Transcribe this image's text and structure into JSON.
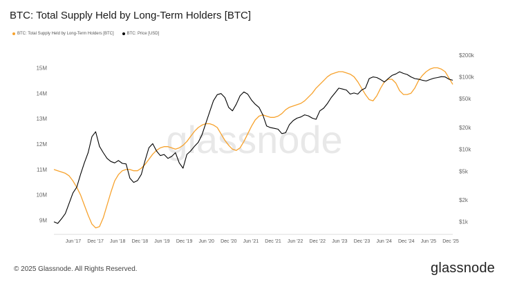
{
  "header": {
    "title": "BTC: Total Supply Held by Long-Term Holders [BTC]"
  },
  "legend": {
    "series1": "BTC: Total Supply Held by Long-Term Holders [BTC]",
    "series2": "BTC: Price [USD]"
  },
  "watermark": "glassnode",
  "footer": {
    "copyright": "© 2025 Glassnode. All Rights Reserved.",
    "brand": "glassnode"
  },
  "colors": {
    "supply": "#f7a22c",
    "price": "#000000"
  },
  "chart_data": {
    "type": "line",
    "title": "BTC: Total Supply Held by Long-Term Holders [BTC]",
    "left_axis": {
      "ticks": [
        "15M",
        "14M",
        "13M",
        "12M",
        "11M",
        "10M",
        "9M"
      ],
      "ylim": [
        8.5,
        15.5
      ],
      "unit": "M BTC"
    },
    "right_axis": {
      "scale": "log",
      "ticks": [
        "$200k",
        "$100k",
        "$50k",
        "$20k",
        "$10k",
        "$5k",
        "$2k",
        "$1k"
      ],
      "ylim": [
        700,
        200000
      ]
    },
    "x_ticks": [
      "Jun '17",
      "Dec '17",
      "Jun '18",
      "Dec '18",
      "Jun '19",
      "Dec '19",
      "Jun '20",
      "Dec '20",
      "Jun '21",
      "Dec '21",
      "Jun '22",
      "Dec '22",
      "Jun '23",
      "Dec '23",
      "Jun '24",
      "Dec '24",
      "Jun '25",
      "Dec '25"
    ],
    "series": [
      {
        "name": "BTC: Total Supply Held by Long-Term Holders [BTC]",
        "axis": "left",
        "x": [
          0,
          1,
          2,
          3,
          4,
          5,
          6,
          7,
          8,
          9,
          10,
          11,
          12,
          13,
          14,
          15,
          16,
          17,
          18,
          19,
          20,
          21,
          22,
          23,
          24,
          25,
          26,
          27,
          28,
          29,
          30,
          31,
          32,
          33,
          34,
          35,
          36,
          37,
          38,
          39,
          40,
          41,
          42,
          43,
          44,
          45,
          46,
          47,
          48,
          49,
          50,
          51,
          52,
          53,
          54,
          55,
          56,
          57,
          58,
          59,
          60,
          61,
          62,
          63,
          64,
          65,
          66,
          67,
          68,
          69,
          70,
          71,
          72,
          73,
          74,
          75,
          76,
          77,
          78,
          79,
          80,
          81,
          82,
          83,
          84,
          85,
          86,
          87,
          88,
          89,
          90,
          91,
          92,
          93,
          94,
          95,
          96,
          97,
          98,
          99,
          100,
          101,
          102,
          103,
          104,
          105
        ],
        "values": [
          11.0,
          10.95,
          10.9,
          10.85,
          10.75,
          10.55,
          10.3,
          10.0,
          9.6,
          9.2,
          8.85,
          8.7,
          8.75,
          9.1,
          9.6,
          10.1,
          10.55,
          10.8,
          10.95,
          11.0,
          11.0,
          10.95,
          10.95,
          11.05,
          11.2,
          11.4,
          11.6,
          11.75,
          11.85,
          11.9,
          11.9,
          11.85,
          11.8,
          11.85,
          11.95,
          12.1,
          12.3,
          12.5,
          12.65,
          12.75,
          12.8,
          12.8,
          12.75,
          12.65,
          12.4,
          12.15,
          11.95,
          11.8,
          11.75,
          11.85,
          12.1,
          12.4,
          12.7,
          12.95,
          13.1,
          13.15,
          13.1,
          13.05,
          13.05,
          13.1,
          13.2,
          13.35,
          13.45,
          13.5,
          13.55,
          13.6,
          13.7,
          13.85,
          14.0,
          14.2,
          14.35,
          14.5,
          14.65,
          14.75,
          14.8,
          14.85,
          14.85,
          14.8,
          14.75,
          14.65,
          14.45,
          14.2,
          13.95,
          13.75,
          13.7,
          13.9,
          14.2,
          14.45,
          14.55,
          14.55,
          14.4,
          14.1,
          13.95,
          13.95,
          14.0,
          14.2,
          14.5,
          14.7,
          14.85,
          14.95,
          15.0,
          15.0,
          14.95,
          14.85,
          14.6,
          14.35
        ]
      },
      {
        "name": "BTC: Price [USD]",
        "axis": "right",
        "x": [
          0,
          1,
          2,
          3,
          4,
          5,
          6,
          7,
          8,
          9,
          10,
          11,
          12,
          13,
          14,
          15,
          16,
          17,
          18,
          19,
          20,
          21,
          22,
          23,
          24,
          25,
          26,
          27,
          28,
          29,
          30,
          31,
          32,
          33,
          34,
          35,
          36,
          37,
          38,
          39,
          40,
          41,
          42,
          43,
          44,
          45,
          46,
          47,
          48,
          49,
          50,
          51,
          52,
          53,
          54,
          55,
          56,
          57,
          58,
          59,
          60,
          61,
          62,
          63,
          64,
          65,
          66,
          67,
          68,
          69,
          70,
          71,
          72,
          73,
          74,
          75,
          76,
          77,
          78,
          79,
          80,
          81,
          82,
          83,
          84,
          85,
          86,
          87,
          88,
          89,
          90,
          91,
          92,
          93,
          94,
          95,
          96,
          97,
          98,
          99,
          100,
          101,
          102,
          103,
          104,
          105
        ],
        "values": [
          1000,
          950,
          1100,
          1300,
          1800,
          2500,
          3000,
          4500,
          6500,
          9000,
          15000,
          17500,
          11000,
          9000,
          7500,
          6800,
          6500,
          7000,
          6400,
          6300,
          4000,
          3500,
          3700,
          4500,
          7000,
          10500,
          12000,
          9500,
          8200,
          8500,
          7500,
          8000,
          9000,
          6500,
          5500,
          8500,
          9500,
          11000,
          12500,
          16000,
          23000,
          33000,
          47000,
          57000,
          59000,
          52000,
          38000,
          34000,
          42000,
          55000,
          62000,
          58000,
          48000,
          42000,
          38000,
          30000,
          21000,
          20000,
          19500,
          19000,
          16500,
          17000,
          22000,
          25000,
          27000,
          28000,
          30000,
          29000,
          27000,
          26000,
          34000,
          37000,
          43000,
          52000,
          60000,
          70000,
          68000,
          66000,
          58000,
          60000,
          58000,
          66000,
          70000,
          95000,
          100000,
          98000,
          92000,
          85000,
          95000,
          105000,
          110000,
          118000,
          112000,
          108000,
          100000,
          95000,
          93000,
          90000,
          88000,
          92000,
          96000,
          98000,
          101000,
          100000,
          93000,
          90000
        ]
      }
    ]
  }
}
